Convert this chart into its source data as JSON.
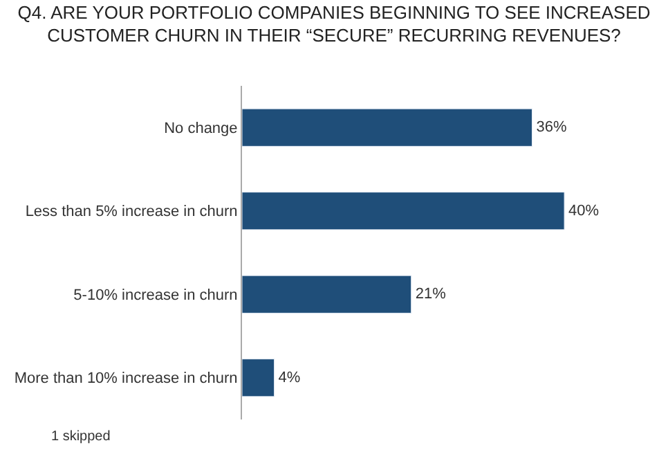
{
  "chart_data": {
    "type": "bar",
    "orientation": "horizontal",
    "title": "Q4. ARE YOUR PORTFOLIO COMPANIES BEGINNING TO SEE INCREASED CUSTOMER CHURN IN THEIR “SECURE” RECURRING REVENUES?",
    "categories": [
      "No change",
      "Less than 5% increase in churn",
      "5-10% increase in churn",
      "More than 10% increase in churn"
    ],
    "values": [
      36,
      40,
      21,
      4
    ],
    "value_labels": [
      "36%",
      "40%",
      "21%",
      "4%"
    ],
    "color": "#1f4e79",
    "annotations": [
      "1 skipped"
    ]
  }
}
